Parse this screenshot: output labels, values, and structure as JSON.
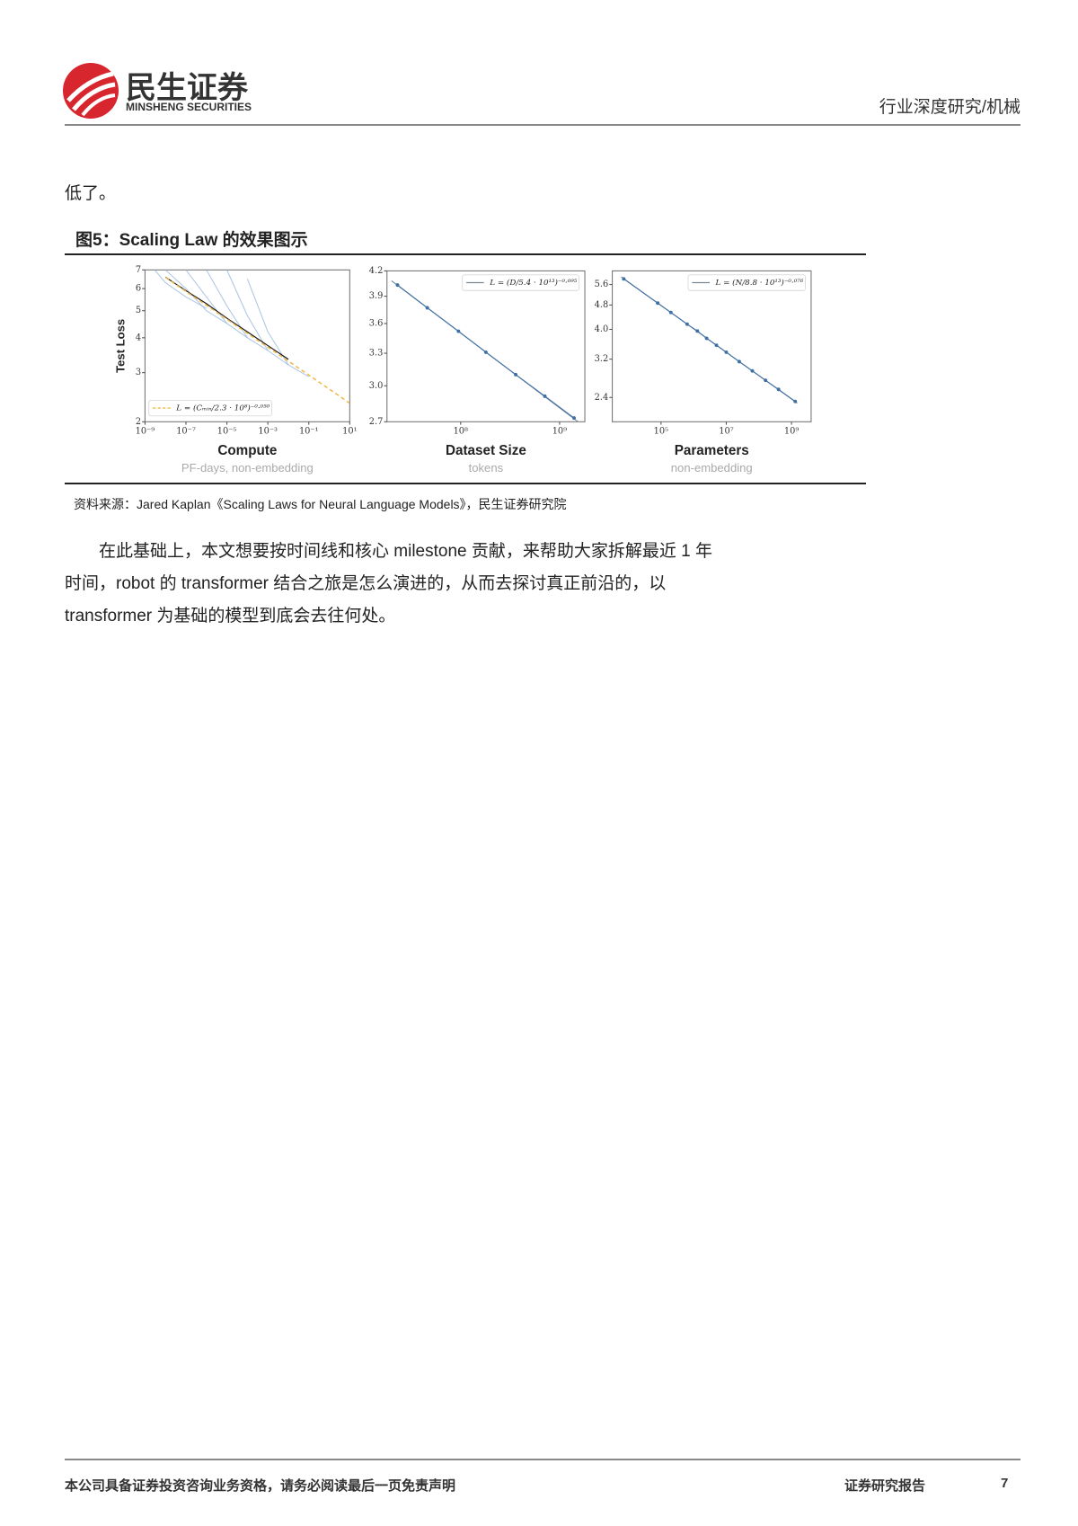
{
  "header": {
    "logo_name": "民生证券",
    "logo_subtitle": "MINSHENG SECURITIES",
    "category": "行业深度研究/机械"
  },
  "intro": "低了。",
  "figure": {
    "caption": "图5：Scaling Law 的效果图示",
    "source": "资料来源：Jared Kaplan《Scaling Laws for Neural Language Models》，民生证券研究院"
  },
  "paragraph": "在此基础上，本文想要按时间线和核心 milestone 贡献，来帮助大家拆解最近 1 年时间，robot 的 transformer 结合之旅是怎么演进的，从而去探讨真正前沿的，以 transformer 为基础的模型到底会去往何处。",
  "footer": {
    "disclaimer": "本公司具备证券投资咨询业务资格，请务必阅读最后一页免责声明",
    "report_type": "证券研究报告",
    "page": 7
  },
  "chart_data": [
    {
      "type": "line",
      "xscale": "log",
      "yscale": "log",
      "ylabel": "Test Loss",
      "xlabel": "Compute",
      "x_sublabel": "PF-days, non-embedding",
      "xlim": [
        1e-09,
        10
      ],
      "ylim": [
        2,
        7
      ],
      "xticks": [
        {
          "value": 1e-09,
          "label": "10⁻⁹"
        },
        {
          "value": 1e-07,
          "label": "10⁻⁷"
        },
        {
          "value": 1e-05,
          "label": "10⁻⁵"
        },
        {
          "value": 0.001,
          "label": "10⁻³"
        },
        {
          "value": 0.1,
          "label": "10⁻¹"
        },
        {
          "value": 10,
          "label": "10¹"
        }
      ],
      "yticks": [
        2,
        3,
        4,
        5,
        6,
        7
      ],
      "legend": "lower left",
      "series": [
        {
          "color": "#8fb0d8",
          "x": [
            3e-09,
            1e-08,
            1e-07,
            1e-06
          ],
          "values": [
            7,
            6.3,
            5.6,
            5.1
          ]
        },
        {
          "color": "#8fb0d8",
          "x": [
            1e-08,
            1e-07,
            1e-06,
            1e-05
          ],
          "values": [
            7,
            6.0,
            5.0,
            4.5
          ]
        },
        {
          "color": "#8fb0d8",
          "x": [
            1e-07,
            1e-06,
            1e-05,
            0.0001
          ],
          "values": [
            7,
            5.6,
            4.5,
            4.0
          ]
        },
        {
          "color": "#8fb0d8",
          "x": [
            1e-06,
            1e-05,
            0.0001,
            0.001
          ],
          "values": [
            7,
            5.2,
            4.0,
            3.6
          ]
        },
        {
          "color": "#8fb0d8",
          "x": [
            1e-05,
            0.0001,
            0.001,
            0.01
          ],
          "values": [
            7,
            4.8,
            3.6,
            3.2
          ]
        },
        {
          "color": "#8fb0d8",
          "x": [
            0.0001,
            0.001,
            0.01,
            0.1
          ],
          "values": [
            6.5,
            4.2,
            3.2,
            2.9
          ]
        },
        {
          "color": "#111111",
          "x": [
            1e-08,
            1e-07,
            1e-06,
            1e-05,
            0.0001,
            0.001,
            0.01
          ],
          "values": [
            6.6,
            5.9,
            5.3,
            4.7,
            4.2,
            3.75,
            3.35
          ]
        },
        {
          "name": "L = (Cₘᵢₙ/2.3 · 10⁸)⁻⁰·⁰⁵⁰",
          "color": "#f0b94a",
          "linestyle": "dashed",
          "x": [
            1e-08,
            1e-07,
            1e-06,
            1e-05,
            0.0001,
            0.001,
            0.01,
            0.1,
            1,
            10
          ],
          "values": [
            6.58,
            5.86,
            5.23,
            4.66,
            4.15,
            3.7,
            3.3,
            2.94,
            2.62,
            2.33
          ]
        }
      ]
    },
    {
      "type": "line",
      "xscale": "log",
      "yscale": "log",
      "xlabel": "Dataset Size",
      "x_sublabel": "tokens",
      "xlim": [
        18000000.0,
        1800000000.0
      ],
      "ylim": [
        2.7,
        4.2
      ],
      "xticks": [
        {
          "value": 100000000.0,
          "label": "10⁸"
        },
        {
          "value": 1000000000.0,
          "label": "10⁹"
        }
      ],
      "yticks": [
        2.7,
        {
          "value": 3,
          "label": "3.0"
        },
        3.3,
        3.6,
        3.9,
        4.2
      ],
      "legend": "upper right",
      "series": [
        {
          "name": "L = (D/5.4 · 10¹³)⁻⁰·⁰⁹⁵",
          "color": "#7a8896",
          "x": [
            20000000.0,
            1600000000.0
          ],
          "values": [
            4.08,
            2.69
          ]
        },
        {
          "color": "#3f6fa5",
          "marker": "o",
          "x": [
            23000000.0,
            46000000.0,
            95000000.0,
            180000000.0,
            360000000.0,
            710000000.0,
            1400000000.0
          ],
          "values": [
            4.03,
            3.77,
            3.52,
            3.31,
            3.1,
            2.91,
            2.73
          ]
        }
      ]
    },
    {
      "type": "line",
      "xscale": "log",
      "yscale": "log",
      "xlabel": "Parameters",
      "x_sublabel": "non-embedding",
      "xlim": [
        3200.0,
        4000000000.0
      ],
      "ylim": [
        2.0,
        6.2
      ],
      "xticks": [
        {
          "value": 100000.0,
          "label": "10⁵"
        },
        {
          "value": 10000000.0,
          "label": "10⁷"
        },
        {
          "value": 1000000000.0,
          "label": "10⁹"
        }
      ],
      "yticks": [
        2.4,
        3.2,
        {
          "value": 4,
          "label": "4.0"
        },
        4.8,
        5.6
      ],
      "legend": "upper right",
      "series": [
        {
          "name": "L = (N/8.8 · 10¹³)⁻⁰·⁰⁷⁶",
          "color": "#7a8896",
          "x": [
            6000.0,
            1500000000.0
          ],
          "values": [
            5.93,
            2.3
          ]
        },
        {
          "color": "#3f6fa5",
          "marker": "o",
          "x": [
            7200.0,
            79000.0,
            200000.0,
            630000.0,
            1300000.0,
            2500000.0,
            5000000.0,
            10000000.0,
            25000000.0,
            63000000.0,
            160000000.0,
            400000000.0,
            1300000000.0
          ],
          "values": [
            5.84,
            4.87,
            4.54,
            4.16,
            3.95,
            3.74,
            3.55,
            3.37,
            3.14,
            2.93,
            2.73,
            2.55,
            2.33
          ]
        }
      ]
    }
  ]
}
